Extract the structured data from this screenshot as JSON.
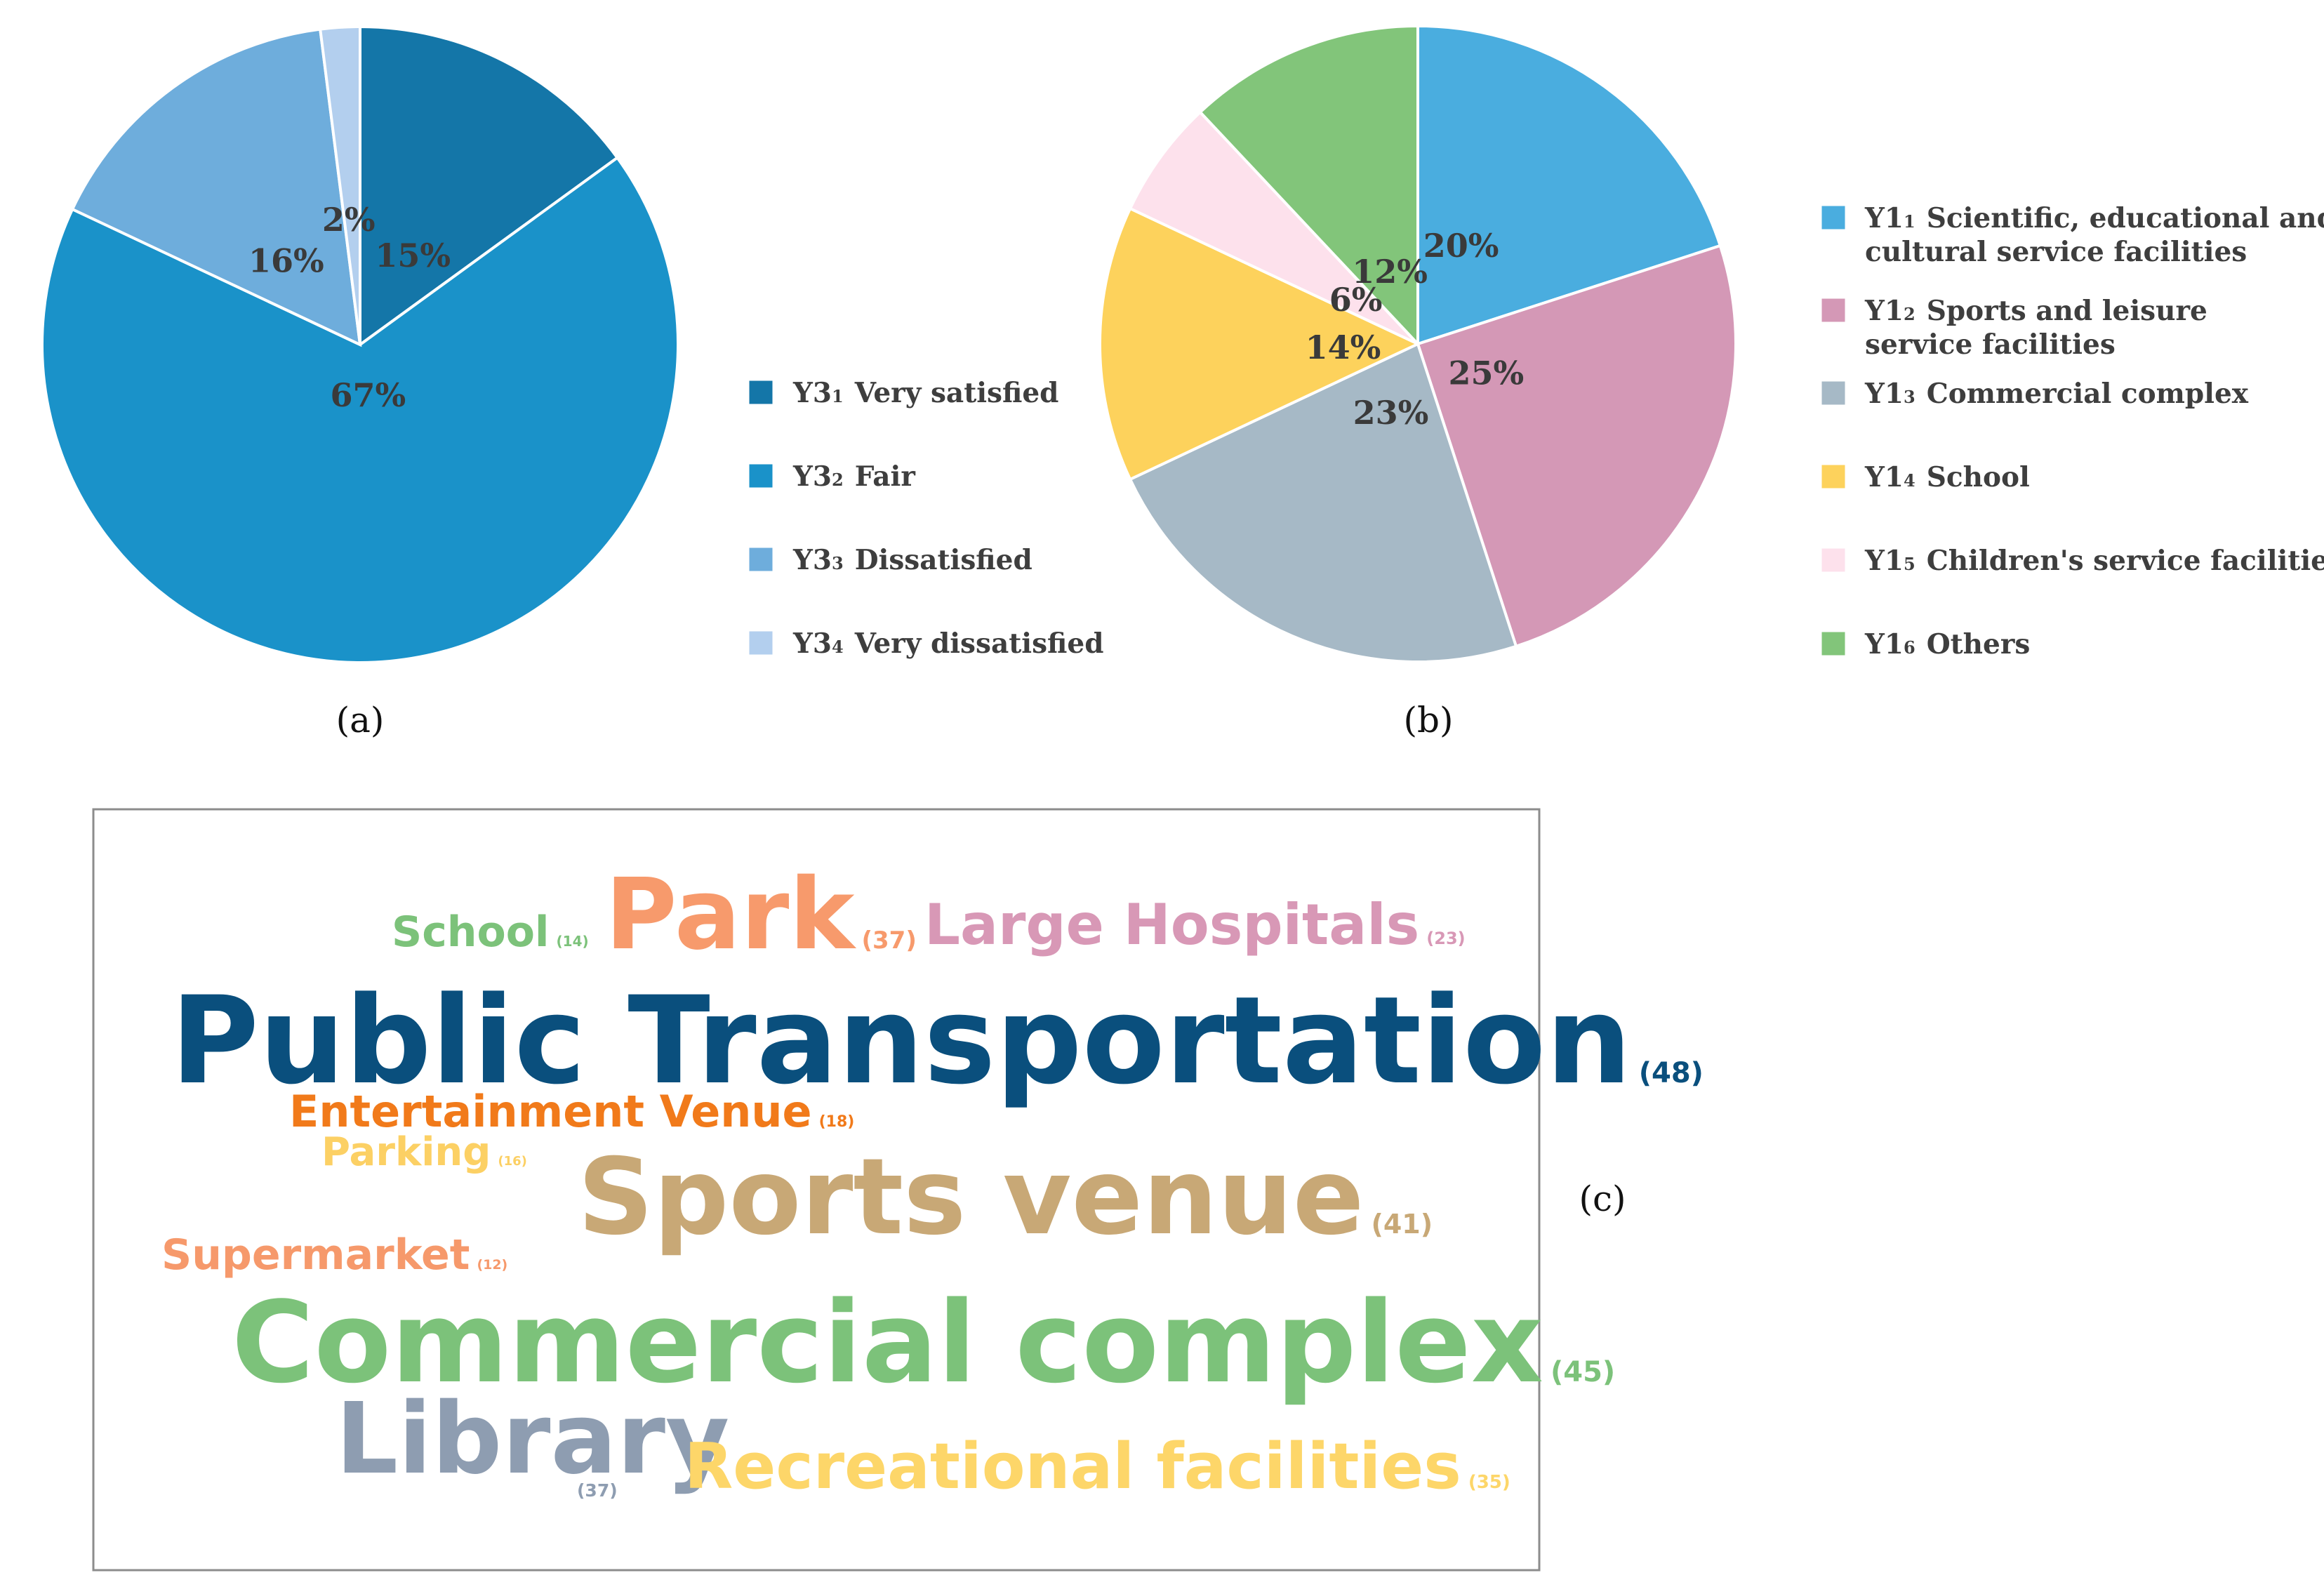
{
  "chart_data": [
    {
      "type": "pie",
      "panel_label": "(a)",
      "slices": [
        {
          "label": "Y3",
          "sub": "1",
          "name": "Very satisfied",
          "value": 15,
          "value_label": "15%",
          "color": "#1476a8"
        },
        {
          "label": "Y3",
          "sub": "2",
          "name": "Fair",
          "value": 67,
          "value_label": "67%",
          "color": "#1a92c9"
        },
        {
          "label": "Y3",
          "sub": "3",
          "name": "Dissatisfied",
          "value": 16,
          "value_label": "16%",
          "color": "#6eaddc"
        },
        {
          "label": "Y3",
          "sub": "4",
          "name": "Very dissatisfied",
          "value": 2,
          "value_label": "2%",
          "color": "#b3cfee"
        }
      ]
    },
    {
      "type": "pie",
      "panel_label": "(b)",
      "slices": [
        {
          "label": "Y1",
          "sub": "1",
          "name": "Scientific, educational and cultural service facilities",
          "name_lines": [
            "Scientific, educational and",
            "cultural service facilities"
          ],
          "value": 20,
          "value_label": "20%",
          "color": "#4aaddf"
        },
        {
          "label": "Y1",
          "sub": "2",
          "name": "Sports and leisure service facilities",
          "name_lines": [
            "Sports and leisure",
            "service facilities"
          ],
          "value": 25,
          "value_label": "25%",
          "color": "#d498b6"
        },
        {
          "label": "Y1",
          "sub": "3",
          "name": "Commercial complex",
          "name_lines": [
            "Commercial complex"
          ],
          "value": 23,
          "value_label": "23%",
          "color": "#a6b9c6"
        },
        {
          "label": "Y1",
          "sub": "4",
          "name": "School",
          "name_lines": [
            "School"
          ],
          "value": 14,
          "value_label": "14%",
          "color": "#fdd25c"
        },
        {
          "label": "Y1",
          "sub": "5",
          "name": "Children's service facilities",
          "name_lines": [
            "Children's service facilities"
          ],
          "value": 6,
          "value_label": "6%",
          "color": "#fde1ec"
        },
        {
          "label": "Y1",
          "sub": "6",
          "name": "Others",
          "name_lines": [
            "Others"
          ],
          "value": 12,
          "value_label": "12%",
          "color": "#82c57a"
        }
      ]
    },
    {
      "type": "wordcloud",
      "panel_label": "(c)",
      "words": [
        {
          "text": "Public Transportation",
          "count": "(48)",
          "value": 48,
          "color": "#0a4f7d"
        },
        {
          "text": "Commercial complex",
          "count": "(45)",
          "value": 45,
          "color": "#7cc27a"
        },
        {
          "text": "Sports venue",
          "count": "(41)",
          "value": 41,
          "color": "#c8a876"
        },
        {
          "text": "Park",
          "count": "(37)",
          "value": 37,
          "color": "#f79a6c"
        },
        {
          "text": "Library",
          "count": "(37)",
          "value": 37,
          "color": "#8e9db1"
        },
        {
          "text": "Recreational facilities",
          "count": "(35)",
          "value": 35,
          "color": "#fdd669"
        },
        {
          "text": "Large Hospitals",
          "count": "(23)",
          "value": 23,
          "color": "#d898b6"
        },
        {
          "text": "Entertainment Venue",
          "count": "(18)",
          "value": 18,
          "color": "#f17a1a"
        },
        {
          "text": "Parking",
          "count": "(16)",
          "value": 16,
          "color": "#fcd064"
        },
        {
          "text": "School",
          "count": "(14)",
          "value": 14,
          "color": "#7cc27a"
        },
        {
          "text": "Supermarket",
          "count": "(12)",
          "value": 12,
          "color": "#f6996b"
        }
      ]
    }
  ]
}
